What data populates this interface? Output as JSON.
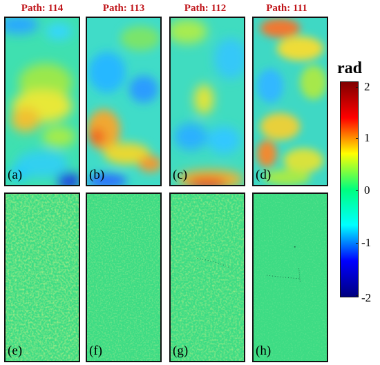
{
  "columns": [
    {
      "title": "Path: 114"
    },
    {
      "title": "Path: 113"
    },
    {
      "title": "Path: 112"
    },
    {
      "title": "Path: 111"
    }
  ],
  "panels_top": [
    {
      "label": "(a)"
    },
    {
      "label": "(b)"
    },
    {
      "label": "(c)"
    },
    {
      "label": "(d)"
    }
  ],
  "panels_bottom": [
    {
      "label": "(e)"
    },
    {
      "label": "(f)"
    },
    {
      "label": "(g)"
    },
    {
      "label": "(h)"
    }
  ],
  "colorbar": {
    "unit": "rad",
    "ticks": [
      "2",
      "1",
      "0",
      "-1",
      "-2"
    ],
    "colors": [
      "#7f0000",
      "#ff0000",
      "#ffff00",
      "#00ff7f",
      "#00ffff",
      "#0000ff",
      "#00007f"
    ]
  },
  "colors": {
    "title": "#c0151a",
    "phase_zero": "#3ddc84"
  }
}
